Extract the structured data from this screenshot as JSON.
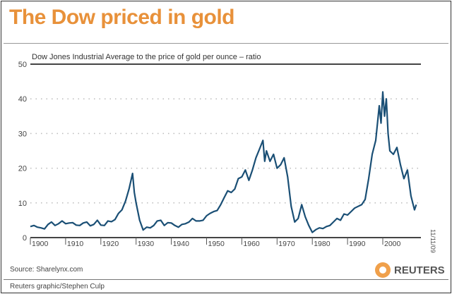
{
  "title": "The Dow priced in gold",
  "source": "Source: Sharelynx.com",
  "credit": "Reuters graphic/Stephen Culp",
  "date": "11/11/09",
  "logo": "REUTERS",
  "colors": {
    "title": "#e8913a",
    "series": "#1a4f75",
    "logo": "#f0a04b"
  },
  "chart_data": {
    "type": "line",
    "title": "Dow Jones Industrial Average to the price of gold per ounce – ratio",
    "ylim": [
      0,
      50
    ],
    "yticks": [
      0,
      10,
      20,
      30,
      40,
      50
    ],
    "xlim": [
      1900,
      2011
    ],
    "xticks": [
      1900,
      1910,
      1920,
      1930,
      1940,
      1950,
      1960,
      1970,
      1980,
      1990,
      2000
    ],
    "grid": "horizontal dotted",
    "series": [
      {
        "x": [
          1900,
          1901,
          1902,
          1903,
          1904,
          1905,
          1906,
          1907,
          1908,
          1909,
          1910,
          1911,
          1912,
          1913,
          1914,
          1915,
          1916,
          1917,
          1918,
          1919,
          1920,
          1921,
          1922,
          1923,
          1924,
          1925,
          1926,
          1927,
          1928,
          1929,
          1929.5,
          1930,
          1931,
          1932,
          1933,
          1934,
          1935,
          1936,
          1937,
          1938,
          1939,
          1940,
          1941,
          1942,
          1943,
          1944,
          1945,
          1946,
          1947,
          1948,
          1949,
          1950,
          1951,
          1952,
          1953,
          1954,
          1955,
          1956,
          1957,
          1958,
          1959,
          1960,
          1961,
          1962,
          1963,
          1964,
          1965,
          1966,
          1966.5,
          1967,
          1968,
          1969,
          1970,
          1971,
          1972,
          1973,
          1974,
          1975,
          1976,
          1977,
          1978,
          1979,
          1980,
          1981,
          1982,
          1983,
          1984,
          1985,
          1986,
          1987,
          1988,
          1989,
          1990,
          1991,
          1992,
          1993,
          1994,
          1995,
          1996,
          1997,
          1998,
          1999,
          1999.5,
          2000,
          2000.5,
          2001,
          2001.5,
          2002,
          2003,
          2004,
          2005,
          2006,
          2007,
          2008,
          2009,
          2009.5
        ],
        "y": [
          3.2,
          3.5,
          3.0,
          2.8,
          2.5,
          3.8,
          4.5,
          3.5,
          4.0,
          4.8,
          4.0,
          4.2,
          4.3,
          3.6,
          3.5,
          4.2,
          4.5,
          3.4,
          3.8,
          5.0,
          3.6,
          3.5,
          4.8,
          4.6,
          5.2,
          7.0,
          8.0,
          10.5,
          14,
          18.5,
          13,
          10,
          5,
          2.2,
          3,
          2.8,
          3.5,
          4.8,
          5,
          3.5,
          4.3,
          4.2,
          3.5,
          3.0,
          3.8,
          4,
          4.5,
          5.5,
          4.8,
          4.8,
          5,
          6.3,
          7,
          7.5,
          7.8,
          9.5,
          11.5,
          13.5,
          13,
          14,
          17,
          17.5,
          19.5,
          16.5,
          19.5,
          23,
          25.5,
          28,
          22,
          25,
          22,
          24,
          20,
          21,
          23,
          17.5,
          9,
          4.5,
          5.5,
          9.5,
          6,
          3.5,
          1.5,
          2.3,
          2.8,
          2.6,
          3.2,
          3.5,
          4.5,
          5.5,
          5,
          6.8,
          6.5,
          7.5,
          8.5,
          9,
          9.5,
          11,
          17,
          24,
          28,
          38,
          33,
          42,
          35,
          40,
          30,
          25,
          24,
          26,
          21,
          17,
          19.5,
          12,
          8,
          9.5
        ]
      }
    ]
  }
}
